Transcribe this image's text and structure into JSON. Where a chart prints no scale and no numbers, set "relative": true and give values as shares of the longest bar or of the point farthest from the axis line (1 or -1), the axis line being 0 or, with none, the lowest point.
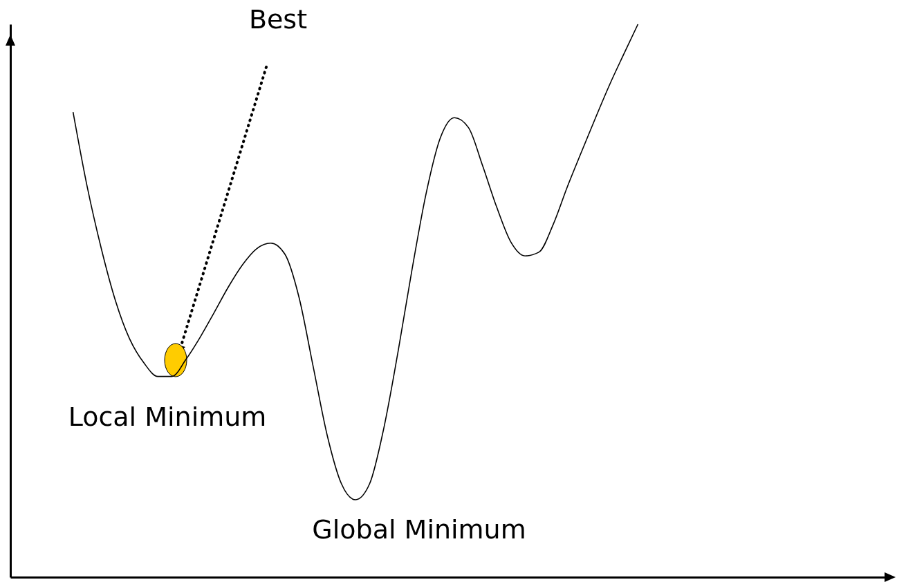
{
  "chart_data": {
    "type": "line",
    "relative": true,
    "grid": false,
    "legend": false,
    "marker": "none",
    "line_style": "solid",
    "annotations": [
      "Best",
      "Local Minimum",
      "Global Minimum"
    ],
    "categories": [
      null,
      null,
      null,
      null,
      null,
      null,
      null,
      null,
      null,
      null,
      null,
      null,
      null,
      null,
      null,
      null,
      null,
      null,
      null,
      null,
      null,
      null,
      null,
      null,
      null,
      null,
      null,
      null,
      null,
      null,
      null,
      null,
      null,
      null,
      null,
      null,
      null,
      null,
      null,
      null,
      null
    ],
    "series": [
      {
        "color": "#000000",
        "values": [
          0.841,
          0.706,
          0.594,
          0.5,
          0.431,
          0.388,
          0.363,
          0.363,
          0.394,
          0.434,
          0.479,
          0.525,
          0.565,
          0.594,
          0.604,
          0.584,
          0.506,
          0.381,
          0.256,
          0.169,
          0.14,
          0.169,
          0.269,
          0.406,
          0.556,
          0.694,
          0.794,
          0.831,
          0.813,
          0.744,
          0.669,
          0.606,
          0.581,
          0.588,
          0.638,
          0.706,
          0.769,
          0.831,
          0.891,
          0.946,
          1
        ]
      }
    ]
  }
}
